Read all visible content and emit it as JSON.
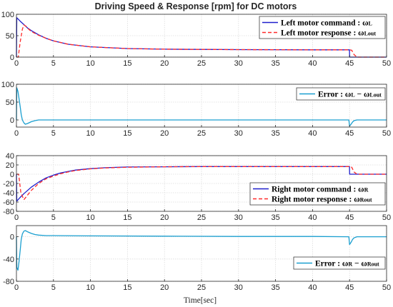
{
  "figure": {
    "title": "Driving Speed & Response [rpm] for DC motors",
    "xlabel": "Time[sec]"
  },
  "colors": {
    "command": "#1f1fcc",
    "response": "#ff2a2a",
    "error": "#1a9fd0",
    "grid": "#dcdcdc",
    "axis": "#262626"
  },
  "chart_data": [
    {
      "type": "line",
      "panel": "left-speed",
      "xlim": [
        0,
        50
      ],
      "ylim": [
        0,
        100
      ],
      "xticks": [
        0,
        5,
        10,
        15,
        20,
        25,
        30,
        35,
        40,
        45,
        50
      ],
      "yticks": [
        0,
        50,
        100
      ],
      "grid": true,
      "legend_position": "top-right",
      "series": [
        {
          "name": "Left motor command : ω_L",
          "legend_main": "Left motor command : ",
          "legend_sym": "ω",
          "legend_sub": "L",
          "style": "solid",
          "color": "#1f1fcc",
          "x": [
            0,
            0.05,
            0.5,
            1,
            1.5,
            2,
            3,
            4,
            5,
            7,
            10,
            15,
            20,
            25,
            30,
            35,
            40,
            44.99,
            45.01,
            50
          ],
          "y": [
            0,
            92,
            84,
            76,
            68,
            62,
            52,
            44,
            38,
            30,
            24,
            20,
            18.5,
            18,
            17.5,
            17.3,
            17,
            17,
            0,
            0
          ]
        },
        {
          "name": "Left motor response : ω_Lout",
          "legend_main": "Left motor response : ",
          "legend_sym": "ω",
          "legend_sub": "Lout",
          "style": "dashed",
          "color": "#ff2a2a",
          "x": [
            0,
            0.25,
            0.5,
            0.8,
            1,
            1.3,
            1.6,
            2,
            3,
            4,
            5,
            7,
            10,
            15,
            20,
            25,
            30,
            35,
            40,
            45,
            45.3,
            45.6,
            46,
            50
          ],
          "y": [
            0,
            0,
            35,
            65,
            75,
            72,
            66,
            60,
            51,
            44,
            38,
            30,
            24,
            20,
            18.5,
            18,
            17.5,
            17.3,
            17,
            17,
            16,
            6,
            0,
            0
          ]
        }
      ]
    },
    {
      "type": "line",
      "panel": "left-error",
      "xlim": [
        0,
        50
      ],
      "ylim": [
        -20,
        100
      ],
      "xticks": [
        0,
        5,
        10,
        15,
        20,
        25,
        30,
        35,
        40,
        45,
        50
      ],
      "yticks": [
        0,
        50,
        100
      ],
      "grid": true,
      "legend_position": "top-right",
      "series": [
        {
          "name": "Error : ω_L − ω_Lout",
          "legend_main": "Error : ",
          "legend_sym": "ω",
          "legend_sub": "L",
          "legend_mid": " − ω",
          "legend_sub2": "Lout",
          "style": "solid",
          "color": "#1a9fd0",
          "x": [
            0,
            0.05,
            0.2,
            0.35,
            0.5,
            0.65,
            0.8,
            1,
            1.2,
            1.5,
            2,
            2.5,
            3,
            5,
            10,
            20,
            30,
            40,
            44.9,
            45,
            45.2,
            45.4,
            45.6,
            46,
            47,
            50
          ],
          "y": [
            0,
            90,
            80,
            60,
            38,
            15,
            0,
            -8,
            -12,
            -10,
            -5,
            -2,
            0,
            0,
            0,
            0,
            0,
            0,
            0,
            -17,
            -12,
            -6,
            -2,
            0,
            0,
            0
          ]
        }
      ]
    },
    {
      "type": "line",
      "panel": "right-speed",
      "xlim": [
        0,
        50
      ],
      "ylim": [
        -80,
        40
      ],
      "xticks": [
        0,
        5,
        10,
        15,
        20,
        25,
        30,
        35,
        40,
        45,
        50
      ],
      "yticks": [
        -80,
        -60,
        -40,
        -20,
        0,
        20,
        40
      ],
      "grid": true,
      "legend_position": "bottom-right",
      "series": [
        {
          "name": "Right motor command : ω_R",
          "legend_main": "Right motor command : ",
          "legend_sym": "ω",
          "legend_sub": "R",
          "style": "solid",
          "color": "#1f1fcc",
          "x": [
            0,
            0.05,
            0.5,
            1,
            1.5,
            2,
            3,
            4,
            5,
            6,
            7,
            8,
            10,
            12,
            15,
            20,
            25,
            30,
            35,
            40,
            44.99,
            45.01,
            50
          ],
          "y": [
            0,
            -58,
            -50,
            -42,
            -35,
            -28,
            -17,
            -8,
            -2,
            3,
            6,
            9,
            12,
            14,
            15.5,
            16,
            16.5,
            16.5,
            16.5,
            16.5,
            16.5,
            0,
            0
          ]
        },
        {
          "name": "Right motor response : ω_Rout",
          "legend_main": "Right motor response : ",
          "legend_sym": "ω",
          "legend_sub": "Rout",
          "style": "dashed",
          "color": "#ff2a2a",
          "x": [
            0,
            0.3,
            0.6,
            1,
            1.5,
            2,
            3,
            4,
            5,
            6,
            7,
            8,
            10,
            12,
            15,
            20,
            25,
            30,
            35,
            40,
            45,
            45.3,
            45.6,
            46,
            50
          ],
          "y": [
            0,
            0,
            -40,
            -55,
            -45,
            -35,
            -20,
            -10,
            -4,
            1,
            5,
            8,
            11.5,
            13.5,
            15,
            16,
            16.5,
            16.5,
            16.5,
            16.5,
            16.5,
            15,
            5,
            0,
            0
          ]
        }
      ]
    },
    {
      "type": "line",
      "panel": "right-error",
      "xlim": [
        0,
        50
      ],
      "ylim": [
        -80,
        20
      ],
      "xticks": [
        0,
        5,
        10,
        15,
        20,
        25,
        30,
        35,
        40,
        45,
        50
      ],
      "yticks": [
        -80,
        -40,
        0
      ],
      "grid": true,
      "legend_position": "bottom-right",
      "series": [
        {
          "name": "Error : ω_R − ω_Rout",
          "legend_main": "Error : ",
          "legend_sym": "ω",
          "legend_sub": "R",
          "legend_mid": " − ω",
          "legend_sub2": "Rout",
          "style": "solid",
          "color": "#1a9fd0",
          "x": [
            0,
            0.05,
            0.2,
            0.35,
            0.5,
            0.65,
            0.8,
            1,
            1.2,
            1.5,
            2,
            2.5,
            3,
            4,
            5,
            10,
            20,
            30,
            40,
            44.9,
            45,
            45.2,
            45.4,
            45.6,
            46,
            47,
            50
          ],
          "y": [
            0,
            -55,
            -60,
            -45,
            -25,
            -5,
            5,
            10,
            11,
            9,
            6,
            4,
            3,
            2,
            2,
            1.5,
            1,
            0.5,
            0.5,
            0,
            -14,
            -10,
            -5,
            -2,
            0,
            0,
            0
          ]
        }
      ]
    }
  ]
}
